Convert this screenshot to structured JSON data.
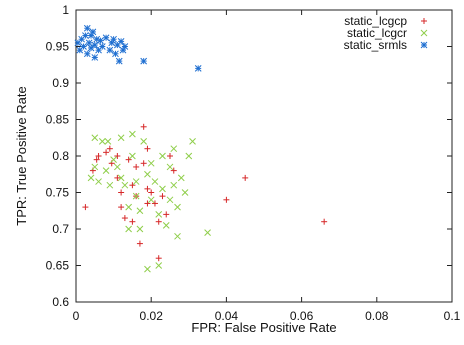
{
  "chart_data": {
    "type": "scatter",
    "xlabel": "FPR: False Positive Rate",
    "ylabel": "TPR: True Positive Rate",
    "xlim": [
      0,
      0.1
    ],
    "ylim": [
      0.6,
      1
    ],
    "xticks": [
      0,
      0.02,
      0.04,
      0.06,
      0.08,
      0.1
    ],
    "xtick_labels": [
      "0",
      "0.02",
      "0.04",
      "0.06",
      "0.08",
      "0.1"
    ],
    "yticks": [
      0.6,
      0.65,
      0.7,
      0.75,
      0.8,
      0.85,
      0.9,
      0.95,
      1
    ],
    "ytick_labels": [
      "0.6",
      "0.65",
      "0.7",
      "0.75",
      "0.8",
      "0.85",
      "0.9",
      "0.95",
      "1"
    ],
    "grid": false,
    "legend_position": "top-right",
    "series": [
      {
        "name": "static_lcgcp",
        "color": "#d62728",
        "marker": "plus",
        "points": [
          [
            0.0025,
            0.73
          ],
          [
            0.0045,
            0.78
          ],
          [
            0.0055,
            0.795
          ],
          [
            0.006,
            0.8
          ],
          [
            0.008,
            0.805
          ],
          [
            0.009,
            0.81
          ],
          [
            0.0095,
            0.79
          ],
          [
            0.011,
            0.8
          ],
          [
            0.011,
            0.77
          ],
          [
            0.012,
            0.75
          ],
          [
            0.012,
            0.73
          ],
          [
            0.013,
            0.715
          ],
          [
            0.014,
            0.795
          ],
          [
            0.015,
            0.76
          ],
          [
            0.015,
            0.71
          ],
          [
            0.016,
            0.785
          ],
          [
            0.016,
            0.745
          ],
          [
            0.017,
            0.68
          ],
          [
            0.018,
            0.84
          ],
          [
            0.018,
            0.79
          ],
          [
            0.019,
            0.81
          ],
          [
            0.019,
            0.755
          ],
          [
            0.019,
            0.735
          ],
          [
            0.02,
            0.75
          ],
          [
            0.021,
            0.735
          ],
          [
            0.022,
            0.71
          ],
          [
            0.022,
            0.66
          ],
          [
            0.023,
            0.745
          ],
          [
            0.024,
            0.72
          ],
          [
            0.025,
            0.8
          ],
          [
            0.026,
            0.78
          ],
          [
            0.04,
            0.74
          ],
          [
            0.045,
            0.77
          ],
          [
            0.066,
            0.71
          ]
        ]
      },
      {
        "name": "static_lcgcr",
        "color": "#8fce4a",
        "marker": "x",
        "points": [
          [
            0.004,
            0.77
          ],
          [
            0.005,
            0.825
          ],
          [
            0.005,
            0.785
          ],
          [
            0.006,
            0.765
          ],
          [
            0.007,
            0.82
          ],
          [
            0.008,
            0.78
          ],
          [
            0.0085,
            0.82
          ],
          [
            0.009,
            0.76
          ],
          [
            0.01,
            0.795
          ],
          [
            0.011,
            0.785
          ],
          [
            0.012,
            0.825
          ],
          [
            0.012,
            0.77
          ],
          [
            0.013,
            0.76
          ],
          [
            0.014,
            0.73
          ],
          [
            0.014,
            0.7
          ],
          [
            0.015,
            0.83
          ],
          [
            0.015,
            0.8
          ],
          [
            0.016,
            0.765
          ],
          [
            0.016,
            0.745
          ],
          [
            0.017,
            0.725
          ],
          [
            0.017,
            0.7
          ],
          [
            0.018,
            0.82
          ],
          [
            0.019,
            0.775
          ],
          [
            0.019,
            0.645
          ],
          [
            0.02,
            0.79
          ],
          [
            0.02,
            0.74
          ],
          [
            0.021,
            0.765
          ],
          [
            0.022,
            0.72
          ],
          [
            0.022,
            0.65
          ],
          [
            0.023,
            0.8
          ],
          [
            0.023,
            0.755
          ],
          [
            0.024,
            0.705
          ],
          [
            0.025,
            0.785
          ],
          [
            0.025,
            0.74
          ],
          [
            0.026,
            0.81
          ],
          [
            0.026,
            0.76
          ],
          [
            0.027,
            0.73
          ],
          [
            0.027,
            0.69
          ],
          [
            0.028,
            0.77
          ],
          [
            0.029,
            0.75
          ],
          [
            0.03,
            0.8
          ],
          [
            0.031,
            0.82
          ],
          [
            0.035,
            0.695
          ]
        ]
      },
      {
        "name": "static_srmls",
        "color": "#1f6fd1",
        "marker": "star",
        "points": [
          [
            0.0005,
            0.955
          ],
          [
            0.001,
            0.945
          ],
          [
            0.0015,
            0.96
          ],
          [
            0.002,
            0.95
          ],
          [
            0.0025,
            0.965
          ],
          [
            0.003,
            0.975
          ],
          [
            0.003,
            0.94
          ],
          [
            0.0035,
            0.955
          ],
          [
            0.004,
            0.965
          ],
          [
            0.004,
            0.948
          ],
          [
            0.0045,
            0.97
          ],
          [
            0.005,
            0.952
          ],
          [
            0.005,
            0.935
          ],
          [
            0.0055,
            0.96
          ],
          [
            0.006,
            0.945
          ],
          [
            0.0065,
            0.958
          ],
          [
            0.007,
            0.95
          ],
          [
            0.008,
            0.962
          ],
          [
            0.009,
            0.945
          ],
          [
            0.0095,
            0.955
          ],
          [
            0.01,
            0.96
          ],
          [
            0.0105,
            0.94
          ],
          [
            0.011,
            0.952
          ],
          [
            0.0115,
            0.93
          ],
          [
            0.012,
            0.957
          ],
          [
            0.0125,
            0.945
          ],
          [
            0.013,
            0.95
          ],
          [
            0.018,
            0.93
          ],
          [
            0.0325,
            0.92
          ]
        ]
      }
    ]
  }
}
